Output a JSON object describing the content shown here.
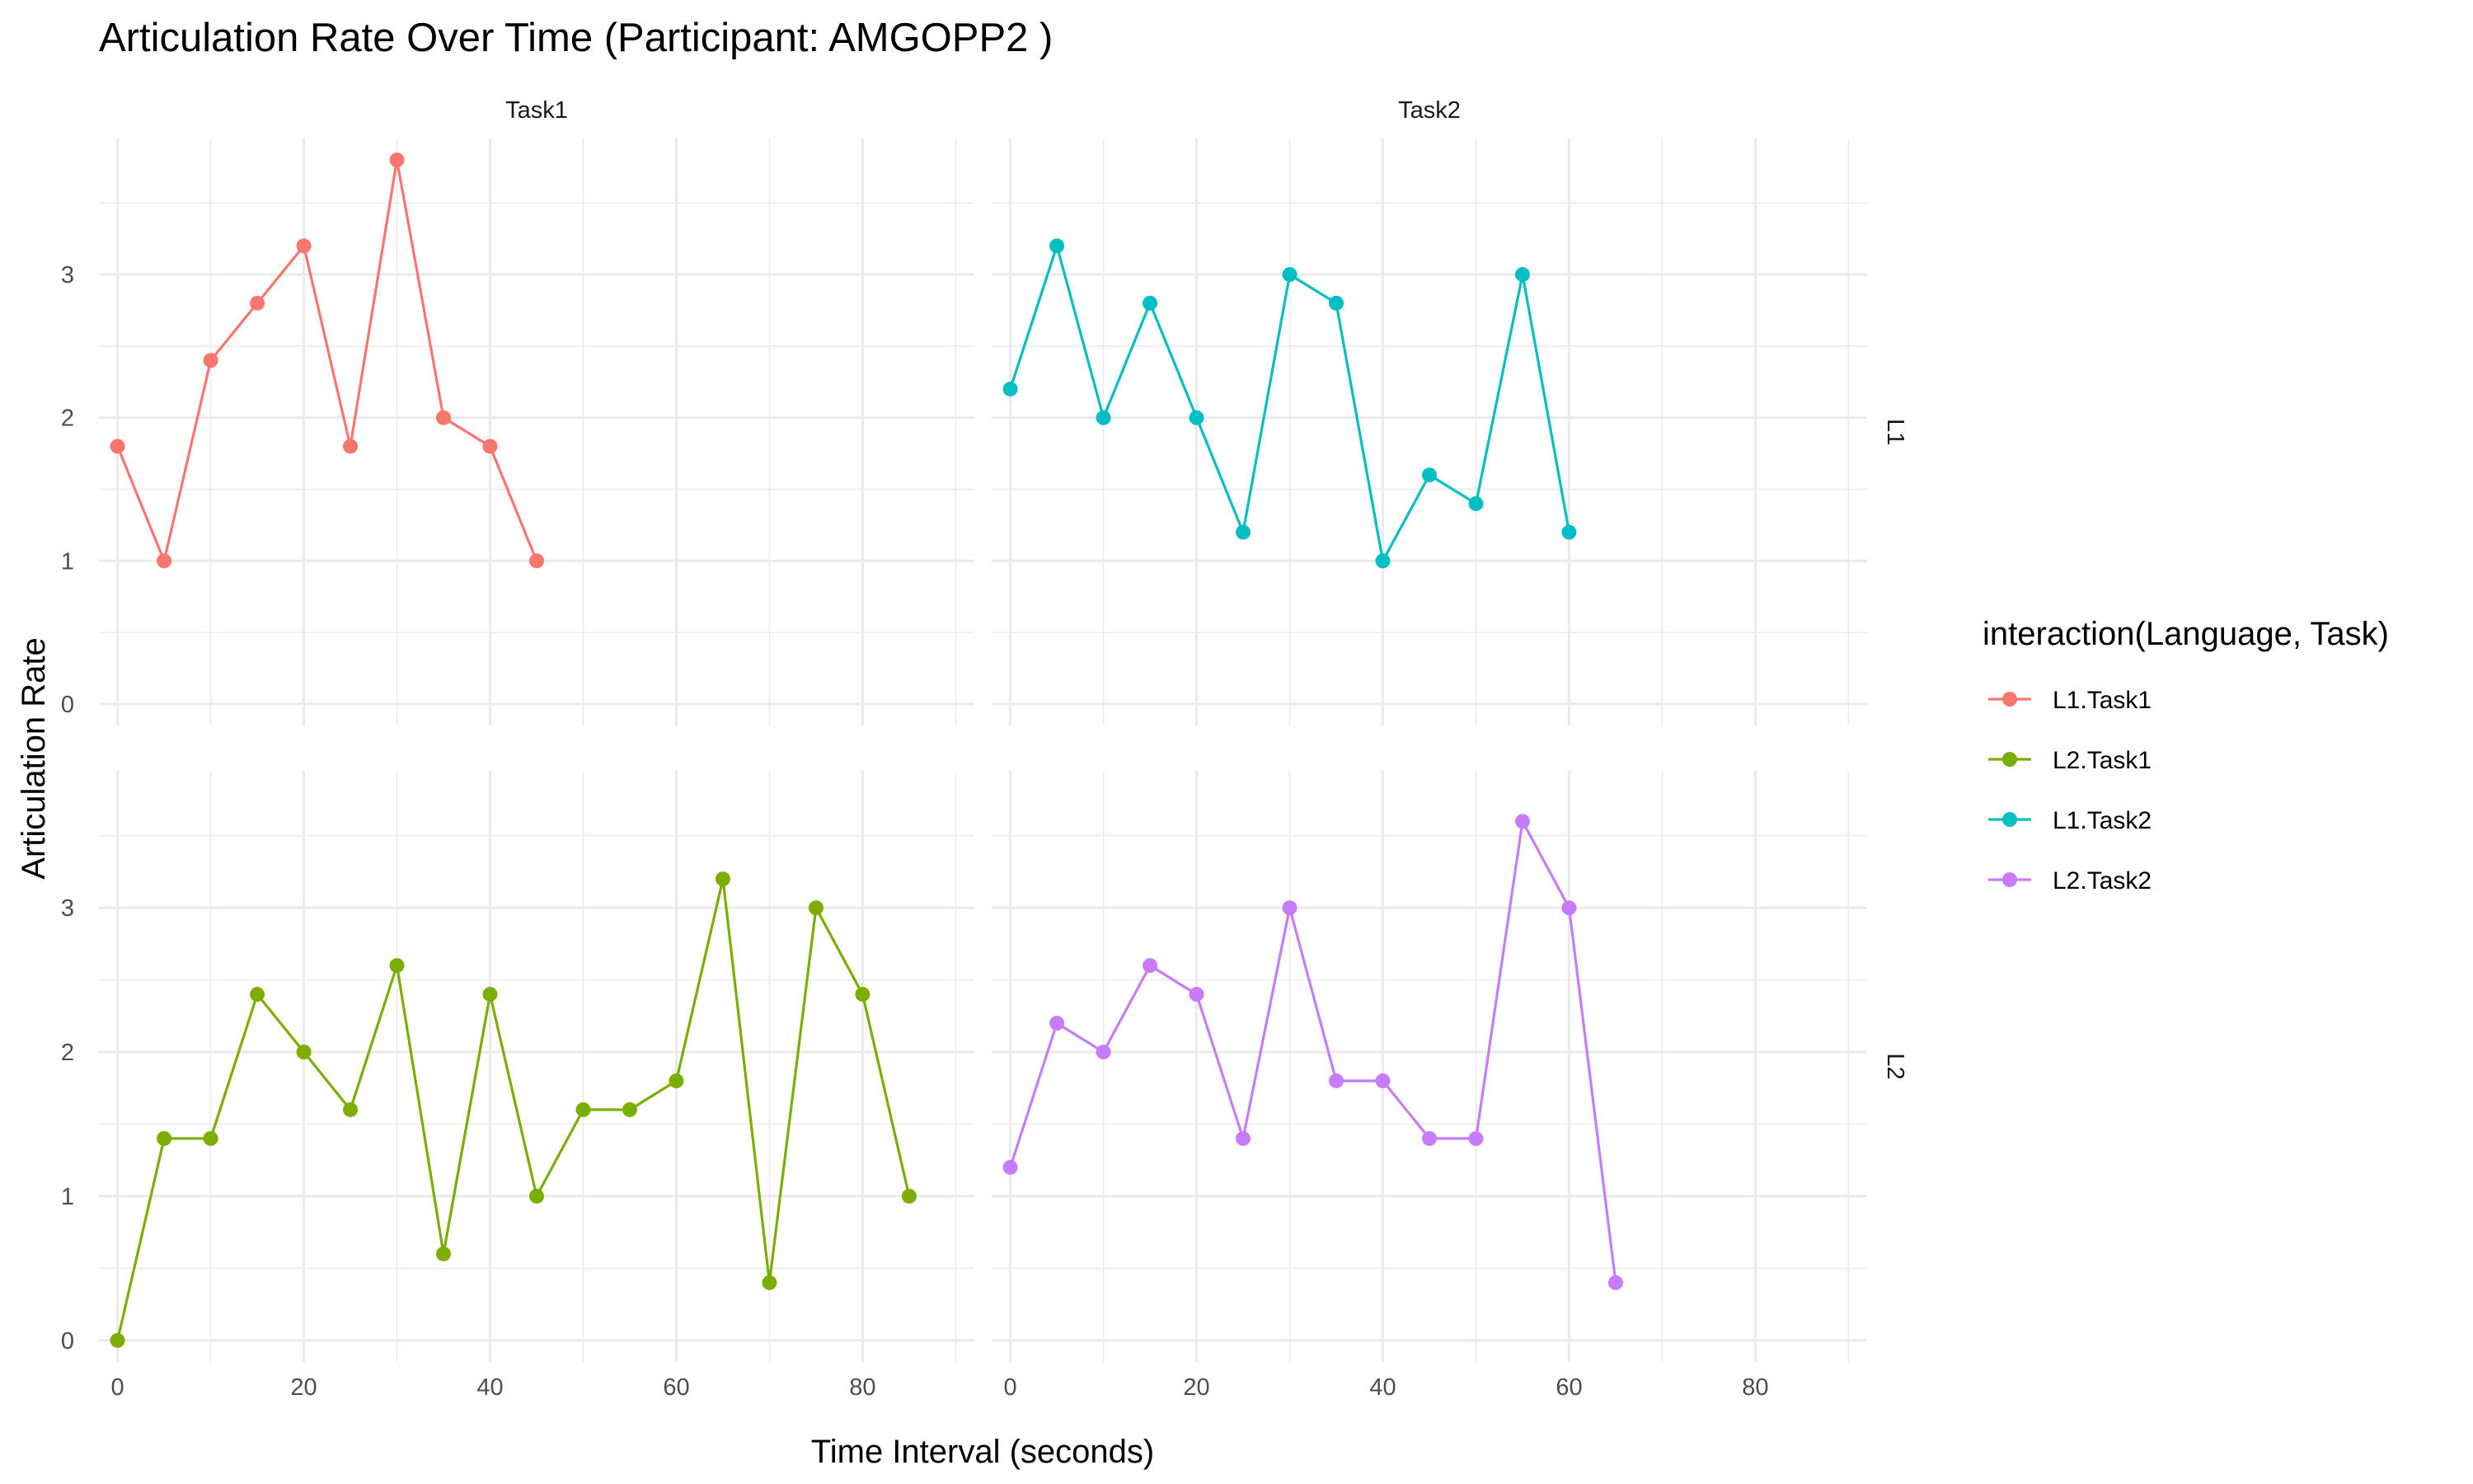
{
  "chart_data": {
    "type": "line",
    "title": "Articulation Rate Over Time (Participant: AMGOPP2 )",
    "xlabel": "Time Interval (seconds)",
    "ylabel": "Articulation Rate",
    "xlim": [
      -2,
      92
    ],
    "ylim": [
      -0.15,
      3.95
    ],
    "x_ticks": [
      0,
      20,
      40,
      60,
      80
    ],
    "y_ticks": [
      0,
      1,
      2,
      3
    ],
    "column_facets": [
      "Task1",
      "Task2"
    ],
    "row_facets": [
      "L1",
      "L2"
    ],
    "grid": true,
    "legend": {
      "title": "interaction(Language, Task)",
      "position": "right",
      "entries": [
        "L1.Task1",
        "L2.Task1",
        "L1.Task2",
        "L2.Task2"
      ]
    },
    "series": [
      {
        "name": "L1.Task1",
        "language": "L1",
        "task": "Task1",
        "color": "#F8766D",
        "x": [
          0,
          5,
          10,
          15,
          20,
          25,
          30,
          35,
          40,
          45
        ],
        "y": [
          1.8,
          1.0,
          2.4,
          2.8,
          3.2,
          1.8,
          3.8,
          2.0,
          1.8,
          1.0
        ]
      },
      {
        "name": "L2.Task1",
        "language": "L2",
        "task": "Task1",
        "color": "#7CAE00",
        "x": [
          0,
          5,
          10,
          15,
          20,
          25,
          30,
          35,
          40,
          45,
          50,
          55,
          60,
          65,
          70,
          75,
          80,
          85
        ],
        "y": [
          0.0,
          1.4,
          1.4,
          2.4,
          2.0,
          1.6,
          2.6,
          0.6,
          2.4,
          1.0,
          1.6,
          1.6,
          1.8,
          3.2,
          0.4,
          3.0,
          2.4,
          1.0
        ]
      },
      {
        "name": "L1.Task2",
        "language": "L1",
        "task": "Task2",
        "color": "#00BFC4",
        "x": [
          0,
          5,
          10,
          15,
          20,
          25,
          30,
          35,
          40,
          45,
          50,
          55,
          60
        ],
        "y": [
          2.2,
          3.2,
          2.0,
          2.8,
          2.0,
          1.2,
          3.0,
          2.8,
          1.0,
          1.6,
          1.4,
          3.0,
          1.2
        ]
      },
      {
        "name": "L2.Task2",
        "language": "L2",
        "task": "Task2",
        "color": "#C77CFF",
        "x": [
          0,
          5,
          10,
          15,
          20,
          25,
          30,
          35,
          40,
          45,
          50,
          55,
          60,
          65
        ],
        "y": [
          1.2,
          2.2,
          2.0,
          2.6,
          2.4,
          1.4,
          3.0,
          1.8,
          1.8,
          1.4,
          1.4,
          3.6,
          3.0,
          0.4
        ]
      }
    ]
  }
}
